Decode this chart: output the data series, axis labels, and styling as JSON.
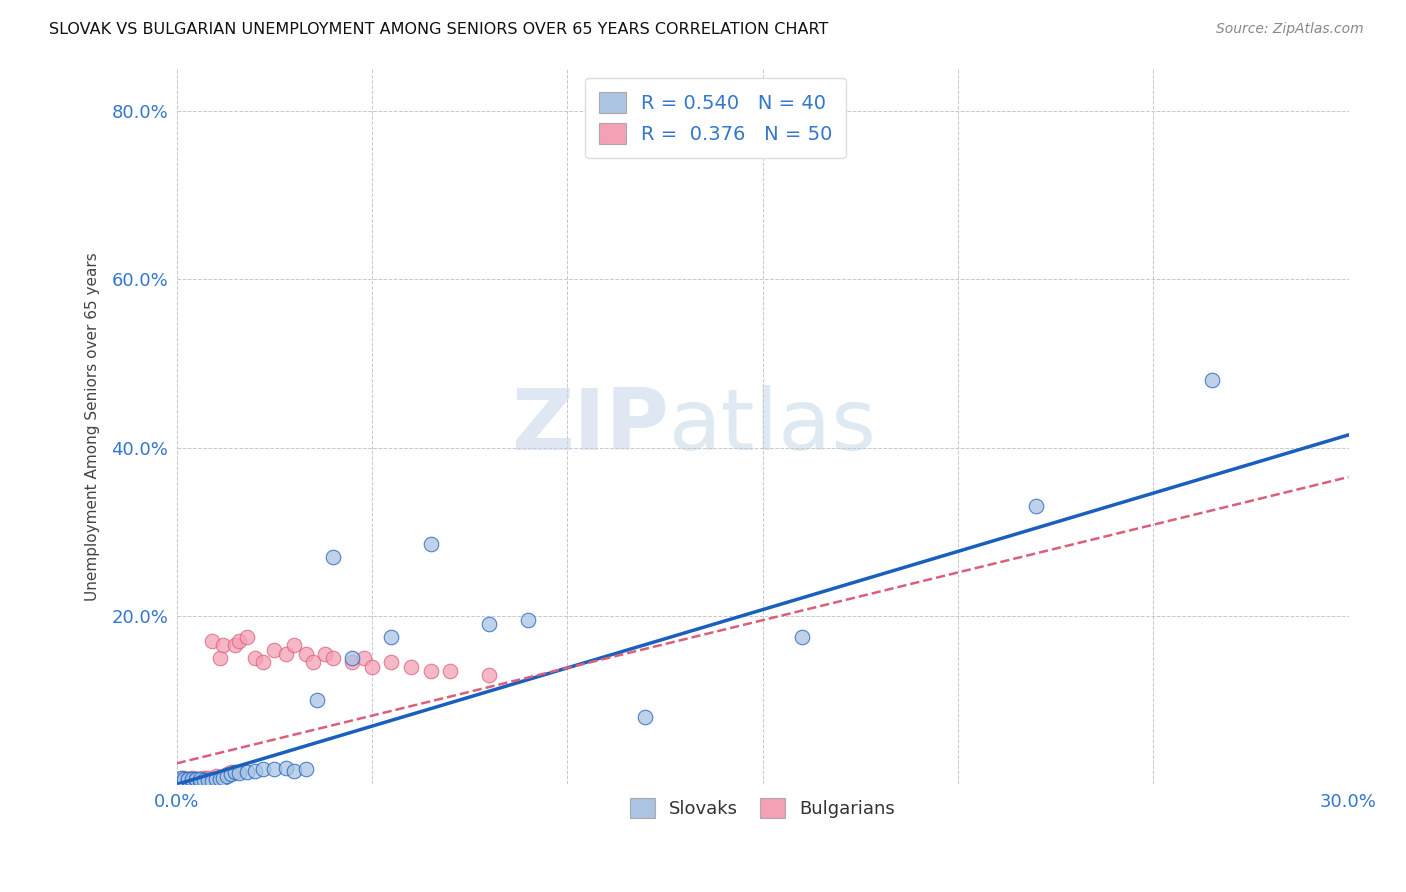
{
  "title": "SLOVAK VS BULGARIAN UNEMPLOYMENT AMONG SENIORS OVER 65 YEARS CORRELATION CHART",
  "source": "Source: ZipAtlas.com",
  "xlabel": "",
  "ylabel": "Unemployment Among Seniors over 65 years",
  "xlim": [
    0.0,
    0.3
  ],
  "ylim": [
    0.0,
    0.85
  ],
  "xticks": [
    0.0,
    0.05,
    0.1,
    0.15,
    0.2,
    0.25,
    0.3
  ],
  "xticklabels": [
    "0.0%",
    "",
    "",
    "",
    "",
    "",
    "30.0%"
  ],
  "yticks": [
    0.0,
    0.2,
    0.4,
    0.6,
    0.8
  ],
  "yticklabels": [
    "",
    "20.0%",
    "40.0%",
    "60.0%",
    "80.0%"
  ],
  "slovak_color": "#aac4e2",
  "bulgarian_color": "#f4a0b5",
  "slovak_line_color": "#1a5fbe",
  "bulgarian_line_color": "#d9607a",
  "grid_color": "#c8c8c8",
  "background_color": "#ffffff",
  "watermark_zip": "ZIP",
  "watermark_atlas": "atlas",
  "legend_R_slovak": "0.540",
  "legend_N_slovak": "40",
  "legend_R_bulgarian": "0.376",
  "legend_N_bulgarian": "50",
  "slovak_points_x": [
    0.001,
    0.001,
    0.002,
    0.002,
    0.003,
    0.003,
    0.004,
    0.004,
    0.005,
    0.005,
    0.006,
    0.006,
    0.007,
    0.008,
    0.009,
    0.01,
    0.011,
    0.012,
    0.013,
    0.014,
    0.015,
    0.016,
    0.018,
    0.02,
    0.022,
    0.025,
    0.028,
    0.03,
    0.033,
    0.036,
    0.04,
    0.045,
    0.055,
    0.065,
    0.08,
    0.09,
    0.12,
    0.16,
    0.22,
    0.265
  ],
  "slovak_points_y": [
    0.005,
    0.008,
    0.004,
    0.007,
    0.005,
    0.006,
    0.004,
    0.006,
    0.005,
    0.007,
    0.004,
    0.006,
    0.005,
    0.005,
    0.004,
    0.006,
    0.006,
    0.008,
    0.01,
    0.012,
    0.015,
    0.014,
    0.015,
    0.016,
    0.018,
    0.018,
    0.02,
    0.016,
    0.018,
    0.1,
    0.27,
    0.15,
    0.175,
    0.285,
    0.19,
    0.195,
    0.08,
    0.175,
    0.33,
    0.48
  ],
  "bulgarian_points_x": [
    0.001,
    0.001,
    0.001,
    0.001,
    0.002,
    0.002,
    0.002,
    0.002,
    0.003,
    0.003,
    0.003,
    0.004,
    0.004,
    0.004,
    0.005,
    0.005,
    0.005,
    0.006,
    0.006,
    0.007,
    0.007,
    0.008,
    0.008,
    0.009,
    0.009,
    0.01,
    0.011,
    0.012,
    0.013,
    0.014,
    0.015,
    0.016,
    0.018,
    0.02,
    0.022,
    0.025,
    0.028,
    0.03,
    0.033,
    0.035,
    0.038,
    0.04,
    0.045,
    0.048,
    0.05,
    0.055,
    0.06,
    0.065,
    0.07,
    0.08
  ],
  "bulgarian_points_y": [
    0.004,
    0.005,
    0.006,
    0.007,
    0.004,
    0.005,
    0.006,
    0.008,
    0.004,
    0.005,
    0.007,
    0.005,
    0.006,
    0.008,
    0.005,
    0.006,
    0.007,
    0.006,
    0.007,
    0.006,
    0.008,
    0.007,
    0.008,
    0.006,
    0.17,
    0.01,
    0.15,
    0.165,
    0.012,
    0.015,
    0.165,
    0.17,
    0.175,
    0.15,
    0.145,
    0.16,
    0.155,
    0.165,
    0.155,
    0.145,
    0.155,
    0.15,
    0.145,
    0.15,
    0.14,
    0.145,
    0.14,
    0.135,
    0.135,
    0.13
  ],
  "slovak_line_x": [
    0.0,
    0.3
  ],
  "slovak_line_y": [
    0.0,
    0.415
  ],
  "bulgarian_line_x": [
    0.0,
    0.3
  ],
  "bulgarian_line_y": [
    0.025,
    0.365
  ]
}
